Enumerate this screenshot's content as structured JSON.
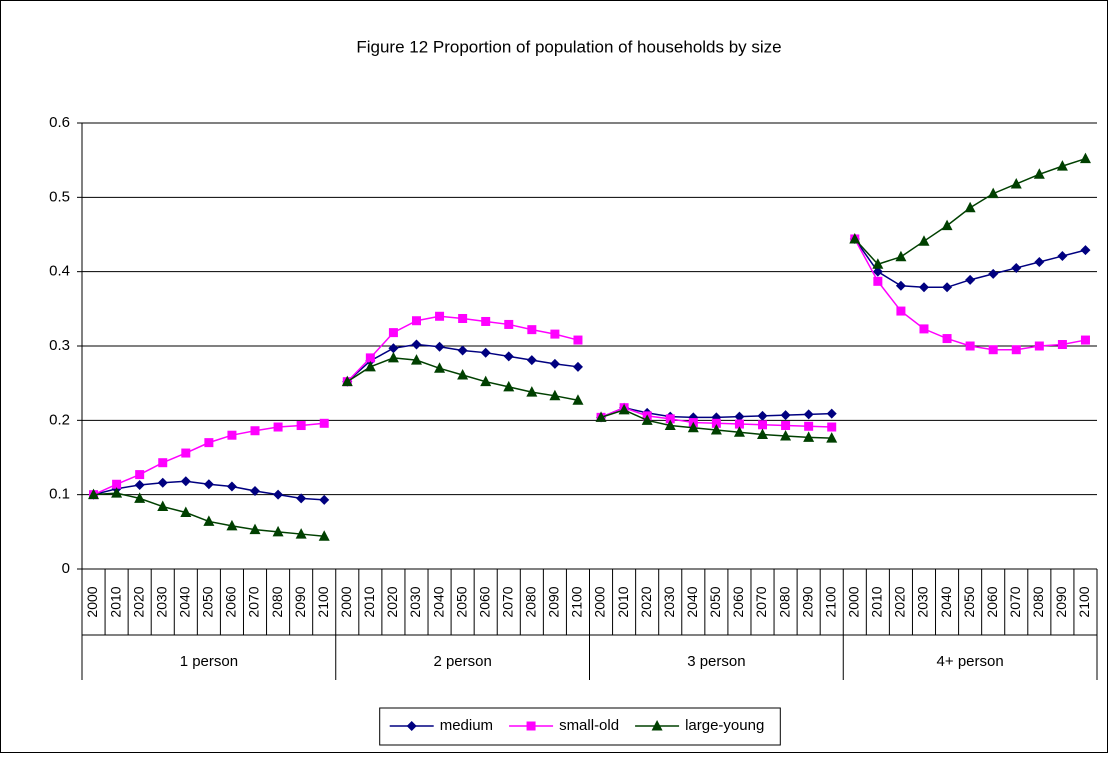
{
  "chart_data": {
    "type": "line",
    "title": "Figure 12 Proportion of population of households by size",
    "groups": [
      {
        "label": "1 person",
        "categories": [
          "2000",
          "2010",
          "2020",
          "2030",
          "2040",
          "2050",
          "2060",
          "2070",
          "2080",
          "2090",
          "2100"
        ]
      },
      {
        "label": "2 person",
        "categories": [
          "2000",
          "2010",
          "2020",
          "2030",
          "2040",
          "2050",
          "2060",
          "2070",
          "2080",
          "2090",
          "2100"
        ]
      },
      {
        "label": "3 person",
        "categories": [
          "2000",
          "2010",
          "2020",
          "2030",
          "2040",
          "2050",
          "2060",
          "2070",
          "2080",
          "2090",
          "2100"
        ]
      },
      {
        "label": "4+ person",
        "categories": [
          "2000",
          "2010",
          "2020",
          "2030",
          "2040",
          "2050",
          "2060",
          "2070",
          "2080",
          "2090",
          "2100"
        ]
      }
    ],
    "series": [
      {
        "name": "medium",
        "color": "#000080",
        "marker": "diamond",
        "values": [
          [
            0.1,
            0.108,
            0.113,
            0.116,
            0.118,
            0.114,
            0.111,
            0.105,
            0.1,
            0.095,
            0.093
          ],
          [
            0.252,
            0.28,
            0.297,
            0.302,
            0.299,
            0.294,
            0.291,
            0.286,
            0.281,
            0.276,
            0.272
          ],
          [
            0.204,
            0.217,
            0.21,
            0.205,
            0.204,
            0.204,
            0.205,
            0.206,
            0.207,
            0.208,
            0.209
          ],
          [
            0.444,
            0.4,
            0.381,
            0.379,
            0.379,
            0.389,
            0.397,
            0.405,
            0.413,
            0.421,
            0.429
          ]
        ]
      },
      {
        "name": "small-old",
        "color": "#FF00FF",
        "marker": "square",
        "values": [
          [
            0.1,
            0.114,
            0.127,
            0.143,
            0.156,
            0.17,
            0.18,
            0.186,
            0.191,
            0.193,
            0.196
          ],
          [
            0.252,
            0.284,
            0.318,
            0.334,
            0.34,
            0.337,
            0.333,
            0.329,
            0.322,
            0.316,
            0.308
          ],
          [
            0.204,
            0.217,
            0.206,
            0.202,
            0.197,
            0.196,
            0.195,
            0.194,
            0.193,
            0.192,
            0.191
          ],
          [
            0.444,
            0.387,
            0.347,
            0.323,
            0.31,
            0.3,
            0.295,
            0.295,
            0.3,
            0.302,
            0.308
          ]
        ]
      },
      {
        "name": "large-young",
        "color": "#004000",
        "marker": "triangle",
        "values": [
          [
            0.1,
            0.102,
            0.095,
            0.084,
            0.076,
            0.064,
            0.058,
            0.053,
            0.05,
            0.047,
            0.044
          ],
          [
            0.252,
            0.272,
            0.284,
            0.281,
            0.27,
            0.261,
            0.252,
            0.245,
            0.238,
            0.233,
            0.227
          ],
          [
            0.204,
            0.214,
            0.2,
            0.193,
            0.19,
            0.187,
            0.184,
            0.181,
            0.179,
            0.177,
            0.176
          ],
          [
            0.444,
            0.41,
            0.42,
            0.441,
            0.462,
            0.486,
            0.505,
            0.518,
            0.531,
            0.542,
            0.552
          ]
        ]
      }
    ],
    "ylim": [
      0,
      0.6
    ],
    "yticks": [
      0,
      0.1,
      0.2,
      0.3,
      0.4,
      0.5,
      0.6
    ],
    "grid": true,
    "legend": "bottom"
  }
}
